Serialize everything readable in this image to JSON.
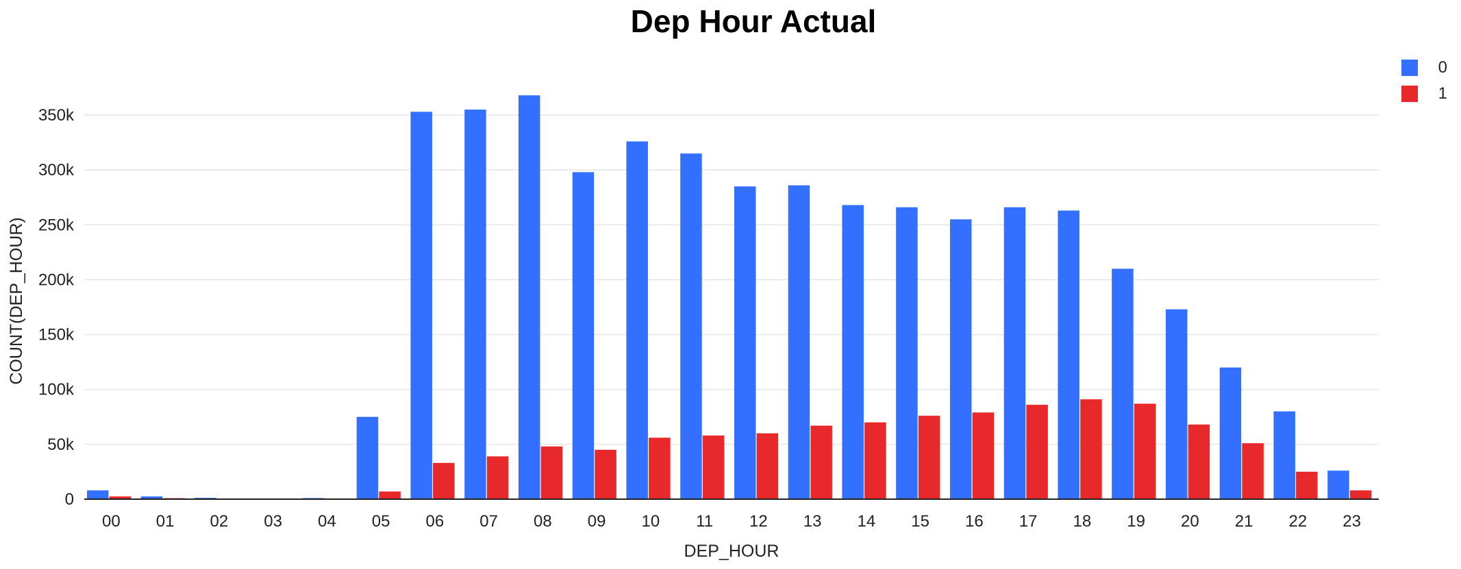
{
  "chart_data": {
    "type": "bar",
    "title": "Dep Hour Actual",
    "xlabel": "DEP_HOUR",
    "ylabel": "COUNT(DEP_HOUR)",
    "categories": [
      "00",
      "01",
      "02",
      "03",
      "04",
      "05",
      "06",
      "07",
      "08",
      "09",
      "10",
      "11",
      "12",
      "13",
      "14",
      "15",
      "16",
      "17",
      "18",
      "19",
      "20",
      "21",
      "22",
      "23"
    ],
    "series": [
      {
        "name": "0",
        "color": "#3370ff",
        "values": [
          8000,
          2500,
          1200,
          300,
          1000,
          75000,
          353000,
          355000,
          368000,
          298000,
          326000,
          315000,
          285000,
          286000,
          268000,
          266000,
          255000,
          266000,
          263000,
          210000,
          173000,
          120000,
          80000,
          26000
        ]
      },
      {
        "name": "1",
        "color": "#e8292b",
        "values": [
          2500,
          900,
          400,
          100,
          300,
          7000,
          33000,
          39000,
          48000,
          45000,
          56000,
          58000,
          60000,
          67000,
          70000,
          76000,
          79000,
          86000,
          91000,
          87000,
          68000,
          51000,
          25000,
          8000
        ]
      }
    ],
    "yticks": [
      0,
      50000,
      100000,
      150000,
      200000,
      250000,
      300000,
      350000
    ],
    "ytick_labels": [
      "0",
      "50k",
      "100k",
      "150k",
      "200k",
      "250k",
      "300k",
      "350k"
    ],
    "ylim": [
      0,
      380000
    ],
    "grid": true,
    "legend_position": "top-right"
  }
}
